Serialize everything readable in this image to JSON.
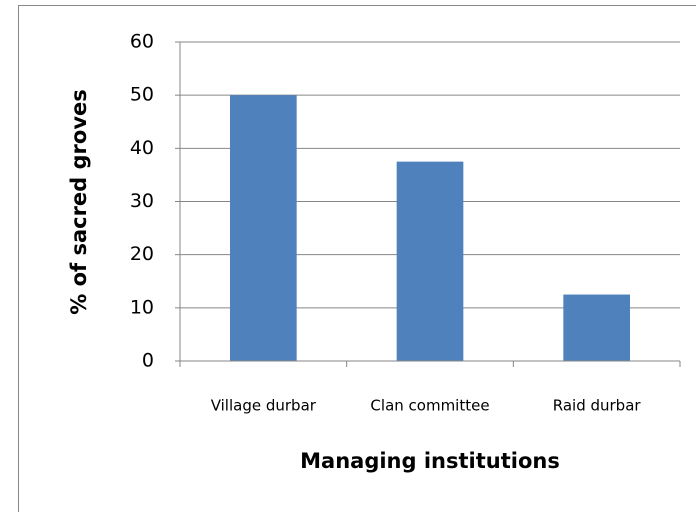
{
  "chart_data": {
    "type": "bar",
    "categories": [
      "Village durbar",
      "Clan committee",
      "Raid durbar"
    ],
    "values": [
      50,
      37.5,
      12.5
    ],
    "color": "#4f81bd",
    "ylim": [
      0,
      60
    ],
    "yticks": [
      0,
      10,
      20,
      30,
      40,
      50,
      60
    ],
    "grid": true,
    "y_label": "% of sacred groves",
    "x_label": "Managing institutions"
  }
}
